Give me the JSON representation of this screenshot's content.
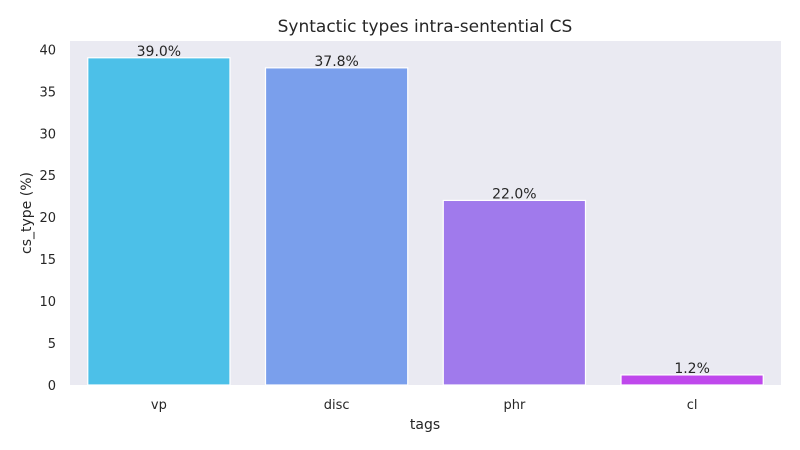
{
  "chart_data": {
    "type": "bar",
    "title": "Syntactic types intra-sentential CS",
    "xlabel": "tags",
    "ylabel": "cs_type (%)",
    "categories": [
      "vp",
      "disc",
      "phr",
      "cl"
    ],
    "values": [
      39.0,
      37.8,
      22.0,
      1.2
    ],
    "data_labels": [
      "39.0%",
      "37.8%",
      "22.0%",
      "1.2%"
    ],
    "bar_colors": [
      "#4cc0e8",
      "#7a9fec",
      "#a07aec",
      "#bf48ec"
    ],
    "ylim": [
      0,
      41
    ],
    "yticks": [
      0,
      5,
      10,
      15,
      20,
      25,
      30,
      35,
      40
    ],
    "grid": false,
    "background": "#eaeaf2"
  }
}
